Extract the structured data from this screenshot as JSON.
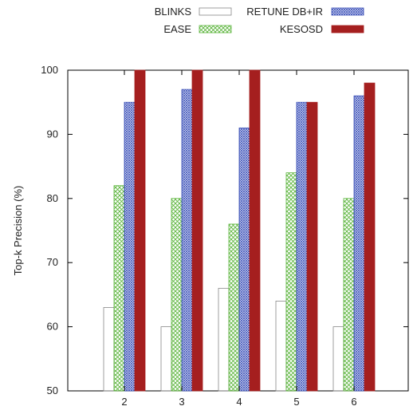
{
  "chart_data": {
    "type": "bar",
    "categories": [
      "2",
      "3",
      "4",
      "5",
      "6"
    ],
    "series": [
      {
        "name": "BLINKS",
        "values": [
          63,
          60,
          66,
          64,
          60
        ],
        "color": "#777777",
        "pattern": "open"
      },
      {
        "name": "EASE",
        "values": [
          82,
          80,
          76,
          84,
          80
        ],
        "color": "#5ab43a",
        "pattern": "crosshatch"
      },
      {
        "name": "RETUNE DB+IR",
        "values": [
          95,
          97,
          91,
          95,
          96
        ],
        "color": "#3a4fb8",
        "pattern": "dense-crosshatch"
      },
      {
        "name": "KESOSD",
        "values": [
          100,
          100,
          100,
          95,
          98
        ],
        "color": "#a51f1f",
        "pattern": "solid"
      }
    ],
    "xlabel": "",
    "ylabel": "Top-k Precision (%)",
    "ylim": [
      50,
      100
    ],
    "yticks": [
      50,
      60,
      70,
      80,
      90,
      100
    ],
    "grid": false,
    "legend_position": "top-right"
  }
}
